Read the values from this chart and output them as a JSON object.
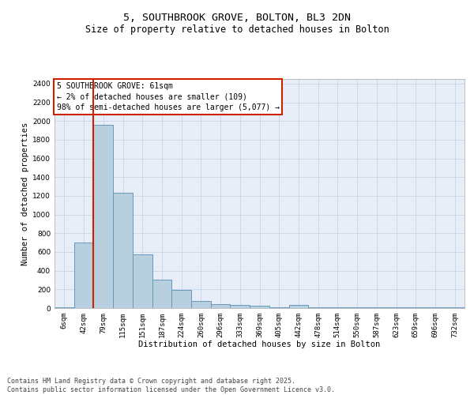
{
  "title_line1": "5, SOUTHBROOK GROVE, BOLTON, BL3 2DN",
  "title_line2": "Size of property relative to detached houses in Bolton",
  "xlabel": "Distribution of detached houses by size in Bolton",
  "ylabel": "Number of detached properties",
  "bar_labels": [
    "6sqm",
    "42sqm",
    "79sqm",
    "115sqm",
    "151sqm",
    "187sqm",
    "224sqm",
    "260sqm",
    "296sqm",
    "333sqm",
    "369sqm",
    "405sqm",
    "442sqm",
    "478sqm",
    "514sqm",
    "550sqm",
    "587sqm",
    "623sqm",
    "659sqm",
    "696sqm",
    "732sqm"
  ],
  "bar_values": [
    10,
    700,
    1960,
    1230,
    575,
    305,
    195,
    75,
    40,
    30,
    25,
    5,
    30,
    5,
    5,
    5,
    5,
    5,
    5,
    5,
    5
  ],
  "bar_color": "#b8cfe0",
  "bar_edge_color": "#6699bb",
  "vline_x_index": 1.5,
  "vline_color": "#cc2200",
  "annotation_text": "5 SOUTHBROOK GROVE: 61sqm\n← 2% of detached houses are smaller (109)\n98% of semi-detached houses are larger (5,077) →",
  "annotation_box_facecolor": "#ffffff",
  "annotation_box_edgecolor": "#cc2200",
  "ylim_max": 2450,
  "yticks": [
    0,
    200,
    400,
    600,
    800,
    1000,
    1200,
    1400,
    1600,
    1800,
    2000,
    2200,
    2400
  ],
  "grid_color": "#c8d4e8",
  "plot_bg_color": "#e8eef8",
  "footer_text": "Contains HM Land Registry data © Crown copyright and database right 2025.\nContains public sector information licensed under the Open Government Licence v3.0.",
  "title_fontsize": 9.5,
  "subtitle_fontsize": 8.5,
  "axis_label_fontsize": 7.5,
  "tick_fontsize": 6.5,
  "annotation_fontsize": 7,
  "footer_fontsize": 6
}
